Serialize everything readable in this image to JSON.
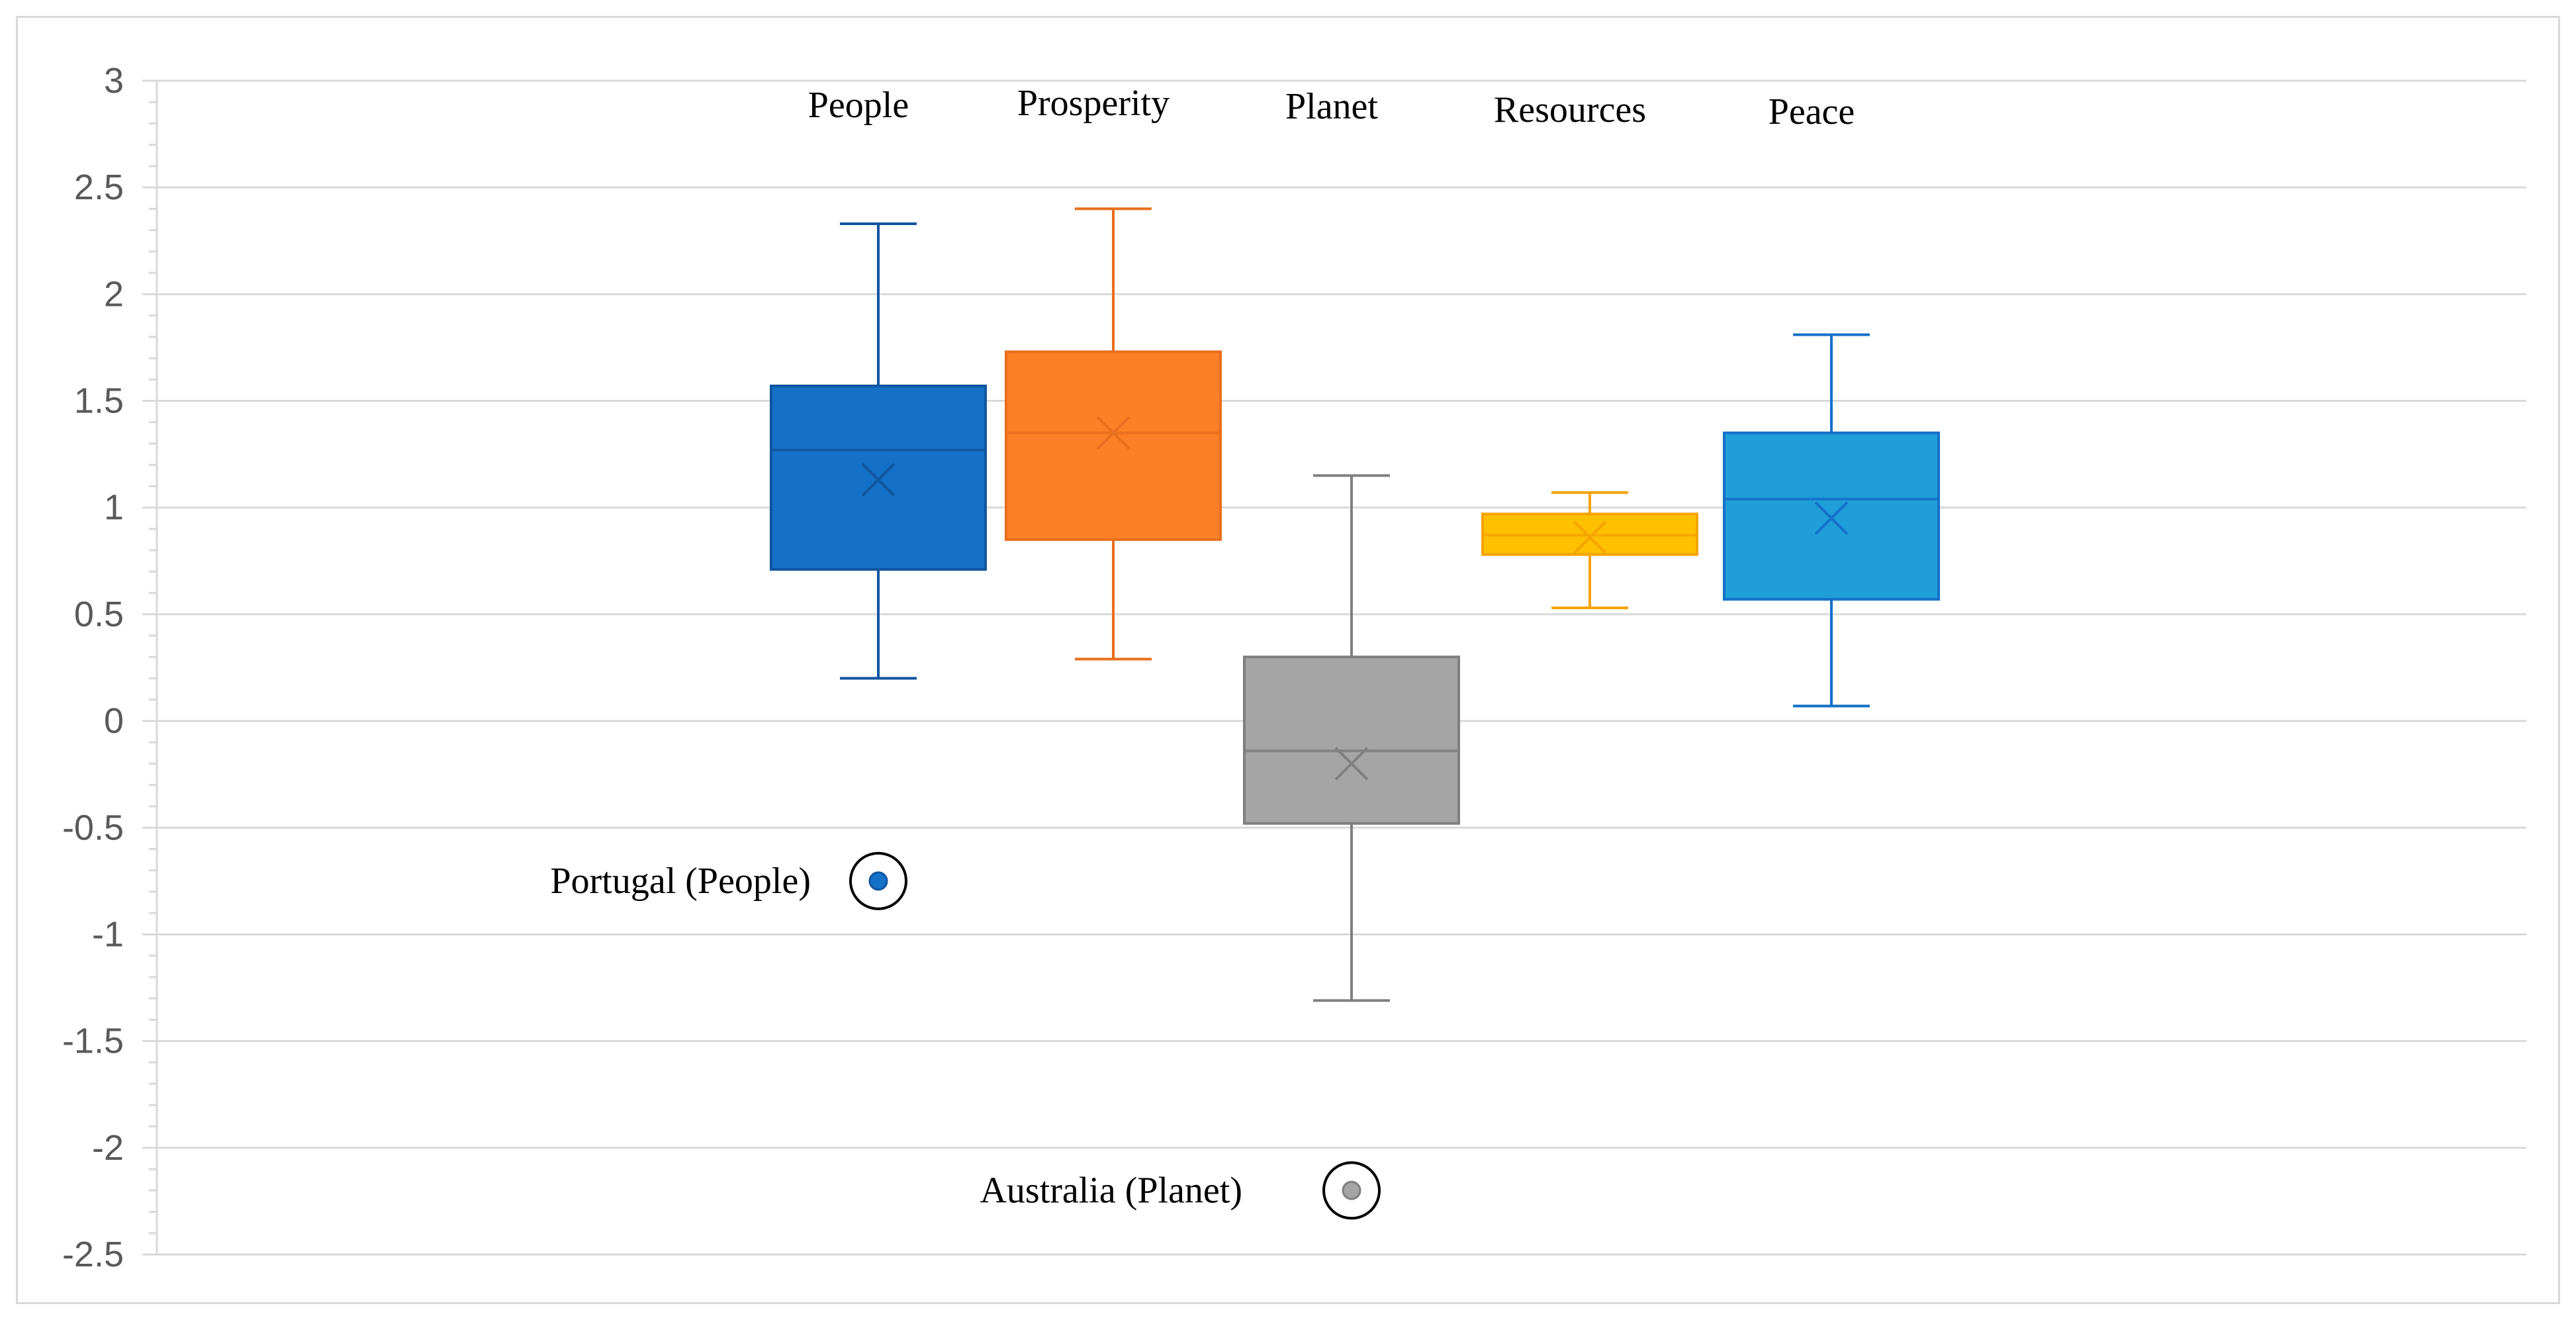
{
  "chart_data": {
    "type": "box",
    "title": "",
    "xlabel": "",
    "ylabel": "",
    "ylim": [
      -2.5,
      3
    ],
    "y_ticks": [
      "3",
      "2.5",
      "2",
      "1.5",
      "1",
      "0.5",
      "0",
      "-0.5",
      "-1",
      "-1.5",
      "-2",
      "-2.5"
    ],
    "y_tick_values": [
      3,
      2.5,
      2,
      1.5,
      1,
      0.5,
      0,
      -0.5,
      -1,
      -1.5,
      -2,
      -2.5
    ],
    "grid": true,
    "legend": "none",
    "series": [
      {
        "name": "People",
        "color": "#1570c7",
        "edge": "#1155a0",
        "min": 0.2,
        "q1": 0.71,
        "median": 1.27,
        "q3": 1.57,
        "max": 2.33,
        "mean": 1.13
      },
      {
        "name": "Prosperity",
        "color": "#fd7f27",
        "edge": "#e86f1e",
        "min": 0.29,
        "q1": 0.85,
        "median": 1.35,
        "q3": 1.73,
        "max": 2.4,
        "mean": 1.35
      },
      {
        "name": "Planet",
        "color": "#a5a5a5",
        "edge": "#7f7f7f",
        "min": -1.31,
        "q1": -0.48,
        "median": -0.14,
        "q3": 0.3,
        "max": 1.15,
        "mean": -0.2
      },
      {
        "name": "Resources",
        "color": "#ffc000",
        "edge": "#f4a300",
        "min": 0.53,
        "q1": 0.78,
        "median": 0.87,
        "q3": 0.97,
        "max": 1.07,
        "mean": 0.86
      },
      {
        "name": "Peace",
        "color": "#1f9ed9",
        "edge": "#1570c7",
        "min": 0.07,
        "q1": 0.57,
        "median": 1.04,
        "q3": 1.35,
        "max": 1.81,
        "mean": 0.95
      }
    ],
    "outliers": [
      {
        "series": "People",
        "label": "Portugal (People)",
        "value": -0.75
      },
      {
        "series": "Planet",
        "label": "Australia (Planet)",
        "value": -2.2
      }
    ]
  }
}
